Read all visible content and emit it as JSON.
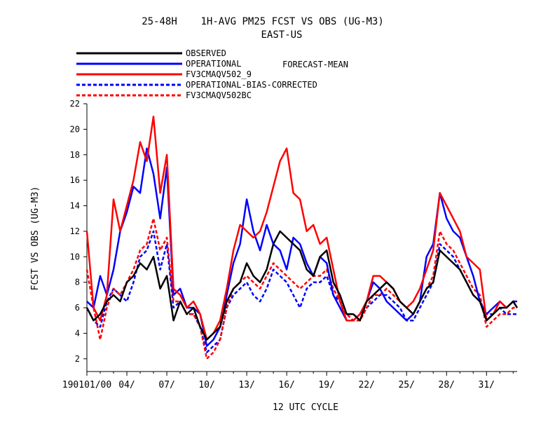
{
  "chart_data": {
    "type": "line",
    "title": "25-48H    1H-AVG PM25 FCST VS OBS (UG-M3)",
    "subtitle": "EAST-US",
    "legend_note": "FORECAST-MEAN",
    "xlabel": "12 UTC CYCLE",
    "ylabel": "FCST VS OBS (UG-M3)",
    "ylim": [
      1.0,
      22.0
    ],
    "yticks": [
      2,
      4,
      6,
      8,
      10,
      12,
      14,
      16,
      18,
      20,
      22
    ],
    "xlim": [
      0,
      32.3
    ],
    "xticks": [
      {
        "day": 0,
        "label": "190101/00"
      },
      {
        "day": 3,
        "label": "04/"
      },
      {
        "day": 6,
        "label": "07/"
      },
      {
        "day": 9,
        "label": "10/"
      },
      {
        "day": 12,
        "label": "13/"
      },
      {
        "day": 15,
        "label": "16/"
      },
      {
        "day": 18,
        "label": "19/"
      },
      {
        "day": 21,
        "label": "22/"
      },
      {
        "day": 24,
        "label": "25/"
      },
      {
        "day": 27,
        "label": "28/"
      },
      {
        "day": 30,
        "label": "31/"
      }
    ],
    "x_unit": "days since 190101/00",
    "series": [
      {
        "name": "OBSERVED",
        "color": "#000000",
        "dash": false,
        "x": [
          0,
          0.5,
          1,
          1.5,
          2,
          2.5,
          3,
          3.5,
          4,
          4.5,
          5,
          5.5,
          6,
          6.5,
          7,
          7.5,
          8,
          8.5,
          9,
          9.5,
          10,
          10.5,
          11,
          11.5,
          12,
          12.5,
          13,
          13.5,
          14,
          14.5,
          15,
          15.5,
          16,
          16.5,
          17,
          17.5,
          18,
          18.5,
          19,
          19.5,
          20,
          20.5,
          21,
          21.5,
          22,
          22.5,
          23,
          23.5,
          24,
          24.5,
          25,
          25.5,
          26,
          26.5,
          27,
          27.5,
          28,
          28.5,
          29,
          29.5,
          30,
          30.5,
          31,
          31.5,
          32,
          32.3
        ],
        "values": [
          6.0,
          5.0,
          5.5,
          6.5,
          7.0,
          6.5,
          8.0,
          8.5,
          9.5,
          9.0,
          10.0,
          7.5,
          8.5,
          5.0,
          6.5,
          5.5,
          6.0,
          4.5,
          3.5,
          4.0,
          4.5,
          6.5,
          7.5,
          8.0,
          9.5,
          8.5,
          8.0,
          9.0,
          11.0,
          12.0,
          11.5,
          11.0,
          10.5,
          9.0,
          8.5,
          10.0,
          10.5,
          8.0,
          7.0,
          5.5,
          5.5,
          5.0,
          6.5,
          7.0,
          7.5,
          8.0,
          7.5,
          6.5,
          6.0,
          5.5,
          6.5,
          7.5,
          8.0,
          10.5,
          10.0,
          9.5,
          9.0,
          8.0,
          7.0,
          6.5,
          5.0,
          5.5,
          6.0,
          6.0,
          6.5,
          6.0
        ]
      },
      {
        "name": "OPERATIONAL",
        "color": "#0000ff",
        "dash": false,
        "x": [
          0,
          0.5,
          1,
          1.5,
          2,
          2.5,
          3,
          3.5,
          4,
          4.5,
          5,
          5.5,
          6,
          6.5,
          7,
          7.5,
          8,
          8.5,
          9,
          9.5,
          10,
          10.5,
          11,
          11.5,
          12,
          12.5,
          13,
          13.5,
          14,
          14.5,
          15,
          15.5,
          16,
          16.5,
          17,
          17.5,
          18,
          18.5,
          19,
          19.5,
          20,
          20.5,
          21,
          21.5,
          22,
          22.5,
          23,
          23.5,
          24,
          24.5,
          25,
          25.5,
          26,
          26.5,
          27,
          27.5,
          28,
          28.5,
          29,
          29.5,
          30,
          30.5,
          31,
          31.5,
          32,
          32.3
        ],
        "values": [
          6.5,
          6.0,
          8.5,
          7.0,
          9.0,
          12.0,
          13.5,
          15.5,
          15.0,
          18.5,
          16.5,
          13.0,
          17.0,
          7.0,
          7.5,
          6.0,
          6.0,
          5.5,
          3.0,
          3.5,
          4.5,
          7.0,
          9.5,
          11.0,
          14.5,
          12.0,
          10.5,
          12.5,
          11.0,
          10.5,
          9.0,
          11.5,
          11.0,
          9.5,
          8.5,
          10.0,
          9.5,
          7.0,
          6.0,
          5.0,
          5.0,
          5.5,
          6.5,
          8.0,
          7.5,
          6.5,
          6.0,
          5.5,
          5.0,
          5.5,
          6.5,
          10.0,
          11.0,
          15.0,
          13.0,
          12.0,
          11.5,
          10.0,
          8.5,
          6.5,
          5.5,
          6.0,
          6.5,
          6.0,
          6.5,
          6.5
        ]
      },
      {
        "name": "FV3CMAQV502_9",
        "color": "#ff0000",
        "dash": false,
        "x": [
          0,
          0.5,
          1,
          1.5,
          2,
          2.5,
          3,
          3.5,
          4,
          4.5,
          5,
          5.5,
          6,
          6.5,
          7,
          7.5,
          8,
          8.5,
          9,
          9.5,
          10,
          10.5,
          11,
          11.5,
          12,
          12.5,
          13,
          13.5,
          14,
          14.5,
          15,
          15.5,
          16,
          16.5,
          17,
          17.5,
          18,
          18.5,
          19,
          19.5,
          20,
          20.5,
          21,
          21.5,
          22,
          22.5,
          23,
          23.5,
          24,
          24.5,
          25,
          25.5,
          26,
          26.5,
          27,
          27.5,
          28,
          28.5,
          29,
          29.5,
          30,
          30.5,
          31,
          31.5,
          32,
          32.3
        ],
        "values": [
          12.0,
          6.0,
          5.0,
          7.0,
          14.5,
          12.0,
          14.0,
          16.0,
          19.0,
          17.5,
          21.0,
          15.0,
          18.0,
          7.5,
          7.0,
          6.0,
          6.5,
          5.5,
          3.5,
          4.0,
          5.0,
          7.5,
          10.5,
          12.5,
          12.0,
          11.5,
          12.0,
          13.5,
          15.5,
          17.5,
          18.5,
          15.0,
          14.5,
          12.0,
          12.5,
          11.0,
          11.5,
          9.0,
          6.5,
          5.0,
          5.0,
          5.5,
          6.5,
          8.5,
          8.5,
          8.0,
          7.5,
          6.5,
          6.0,
          6.5,
          7.5,
          9.0,
          10.5,
          15.0,
          14.0,
          13.0,
          12.0,
          10.0,
          9.5,
          9.0,
          5.0,
          5.5,
          6.5,
          6.0,
          6.5,
          6.0
        ]
      },
      {
        "name": "OPERATIONAL-BIAS-CORRECTED",
        "color": "#0000ff",
        "dash": true,
        "x": [
          0,
          0.5,
          1,
          1.5,
          2,
          2.5,
          3,
          3.5,
          4,
          4.5,
          5,
          5.5,
          6,
          6.5,
          7,
          7.5,
          8,
          8.5,
          9,
          9.5,
          10,
          10.5,
          11,
          11.5,
          12,
          12.5,
          13,
          13.5,
          14,
          14.5,
          15,
          15.5,
          16,
          16.5,
          17,
          17.5,
          18,
          18.5,
          19,
          19.5,
          20,
          20.5,
          21,
          21.5,
          22,
          22.5,
          23,
          23.5,
          24,
          24.5,
          25,
          25.5,
          26,
          26.5,
          27,
          27.5,
          28,
          28.5,
          29,
          29.5,
          30,
          30.5,
          31,
          31.5,
          32,
          32.3
        ],
        "values": [
          6.0,
          5.0,
          4.5,
          6.5,
          7.5,
          7.0,
          6.5,
          8.0,
          10.0,
          10.5,
          12.0,
          9.0,
          11.0,
          6.0,
          6.5,
          5.5,
          5.5,
          4.5,
          2.5,
          3.0,
          3.5,
          6.0,
          7.0,
          7.5,
          8.0,
          7.0,
          6.5,
          7.5,
          9.0,
          8.5,
          8.0,
          7.0,
          6.0,
          7.5,
          8.0,
          8.0,
          8.5,
          7.0,
          6.5,
          5.5,
          5.5,
          5.0,
          6.0,
          6.5,
          7.0,
          7.0,
          6.5,
          6.0,
          5.0,
          5.0,
          6.0,
          7.0,
          8.0,
          11.0,
          10.5,
          10.0,
          9.0,
          8.0,
          7.0,
          6.5,
          5.5,
          5.5,
          6.0,
          5.5,
          5.5,
          5.5
        ]
      },
      {
        "name": "FV3CMAQV502BC",
        "color": "#ff0000",
        "dash": true,
        "x": [
          0,
          0.5,
          1,
          1.5,
          2,
          2.5,
          3,
          3.5,
          4,
          4.5,
          5,
          5.5,
          6,
          6.5,
          7,
          7.5,
          8,
          8.5,
          9,
          9.5,
          10,
          10.5,
          11,
          11.5,
          12,
          12.5,
          13,
          13.5,
          14,
          14.5,
          15,
          15.5,
          16,
          16.5,
          17,
          17.5,
          18,
          18.5,
          19,
          19.5,
          20,
          20.5,
          21,
          21.5,
          22,
          22.5,
          23,
          23.5,
          24,
          24.5,
          25,
          25.5,
          26,
          26.5,
          27,
          27.5,
          28,
          28.5,
          29,
          29.5,
          30,
          30.5,
          31,
          31.5,
          32,
          32.3
        ],
        "values": [
          9.0,
          6.0,
          3.5,
          6.0,
          7.5,
          7.0,
          8.0,
          9.0,
          10.5,
          11.0,
          13.0,
          10.5,
          11.5,
          6.5,
          6.5,
          5.5,
          5.5,
          4.5,
          2.0,
          2.5,
          3.5,
          6.0,
          7.5,
          8.0,
          8.5,
          8.0,
          7.5,
          8.5,
          9.5,
          9.0,
          8.5,
          8.0,
          7.5,
          8.0,
          8.5,
          8.5,
          9.0,
          7.5,
          6.5,
          5.5,
          5.0,
          5.0,
          6.0,
          7.0,
          7.0,
          7.5,
          7.0,
          6.5,
          6.0,
          5.5,
          6.5,
          7.5,
          8.5,
          12.0,
          11.0,
          10.5,
          9.5,
          8.5,
          7.5,
          7.0,
          4.5,
          5.0,
          5.5,
          5.5,
          6.0,
          6.0
        ]
      }
    ]
  }
}
